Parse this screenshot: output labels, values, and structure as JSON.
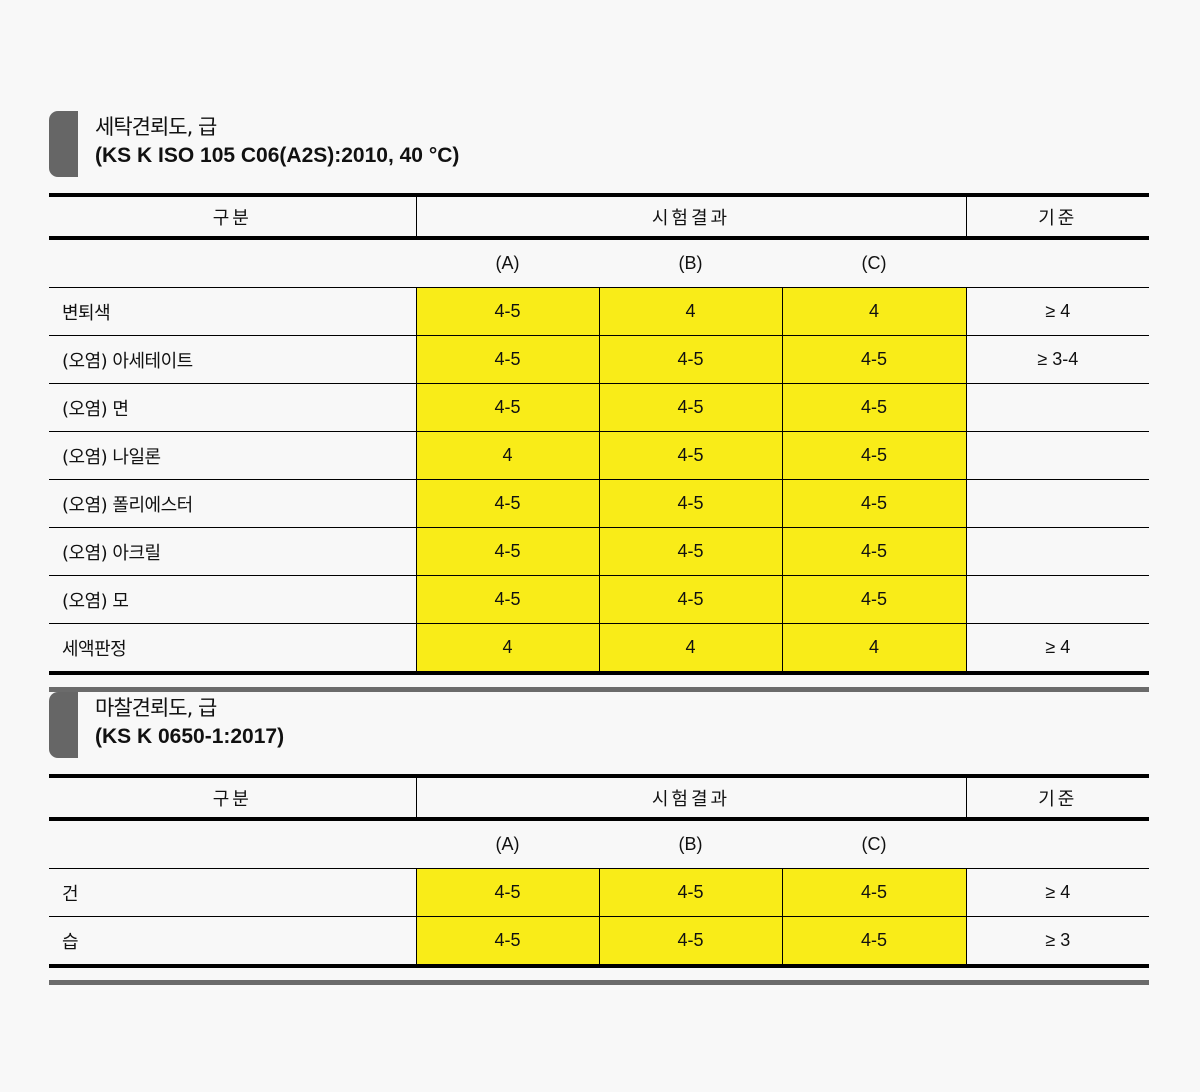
{
  "sections": [
    {
      "title": "세탁견뢰도, 급",
      "standard": "(KS K ISO 105 C06(A2S):2010, 40 °C)",
      "headers": {
        "category": "구분",
        "results": "시험결과",
        "criteria": "기준"
      },
      "subheaders": [
        "(A)",
        "(B)",
        "(C)"
      ],
      "rows": [
        {
          "label": "변퇴색",
          "a": "4-5",
          "b": "4",
          "c": "4",
          "criteria": "≥ 4"
        },
        {
          "label": "(오염) 아세테이트",
          "a": "4-5",
          "b": "4-5",
          "c": "4-5",
          "criteria": "≥ 3-4"
        },
        {
          "label": "(오염) 면",
          "a": "4-5",
          "b": "4-5",
          "c": "4-5",
          "criteria": ""
        },
        {
          "label": "(오염) 나일론",
          "a": "4",
          "b": "4-5",
          "c": "4-5",
          "criteria": ""
        },
        {
          "label": "(오염) 폴리에스터",
          "a": "4-5",
          "b": "4-5",
          "c": "4-5",
          "criteria": ""
        },
        {
          "label": "(오염) 아크릴",
          "a": "4-5",
          "b": "4-5",
          "c": "4-5",
          "criteria": ""
        },
        {
          "label": "(오염) 모",
          "a": "4-5",
          "b": "4-5",
          "c": "4-5",
          "criteria": ""
        },
        {
          "label": "세액판정",
          "a": "4",
          "b": "4",
          "c": "4",
          "criteria": "≥ 4"
        }
      ]
    },
    {
      "title": "마찰견뢰도, 급",
      "standard": "(KS K 0650-1:2017)",
      "headers": {
        "category": "구분",
        "results": "시험결과",
        "criteria": "기준"
      },
      "subheaders": [
        "(A)",
        "(B)",
        "(C)"
      ],
      "rows": [
        {
          "label": "건",
          "a": "4-5",
          "b": "4-5",
          "c": "4-5",
          "criteria": "≥ 4"
        },
        {
          "label": "습",
          "a": "4-5",
          "b": "4-5",
          "c": "4-5",
          "criteria": "≥ 3"
        }
      ]
    }
  ],
  "colors": {
    "highlight": "#f9ec18",
    "title_mark": "#666666"
  }
}
